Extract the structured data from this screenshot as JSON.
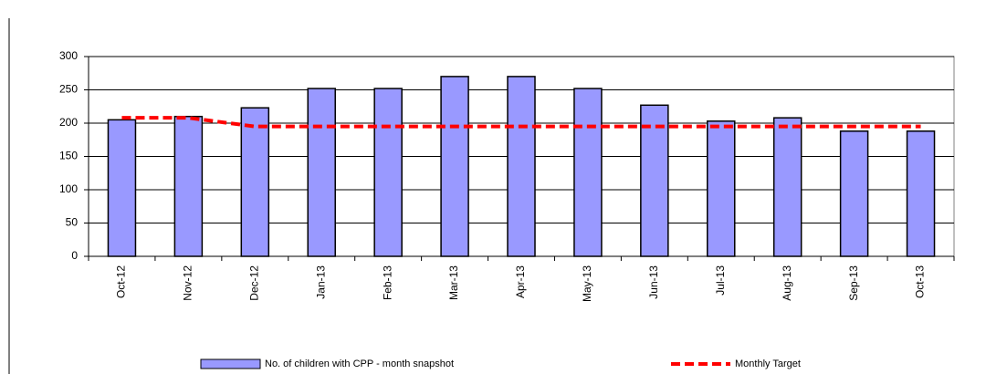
{
  "chart_data": {
    "type": "bar",
    "categories": [
      "Oct-12",
      "Nov-12",
      "Dec-12",
      "Jan-13",
      "Feb-13",
      "Mar-13",
      "Apr-13",
      "May-13",
      "Jun-13",
      "Jul-13",
      "Aug-13",
      "Sep-13",
      "Oct-13"
    ],
    "series": [
      {
        "name": "No. of children with CPP - month snapshot",
        "type": "bar",
        "color": "#9999ff",
        "values": [
          205,
          210,
          223,
          252,
          252,
          270,
          270,
          252,
          227,
          203,
          208,
          188,
          188
        ]
      },
      {
        "name": "Monthly Target",
        "type": "line",
        "color": "#ff0000",
        "values": [
          208,
          208,
          195,
          195,
          195,
          195,
          195,
          195,
          195,
          195,
          195,
          195,
          195
        ]
      }
    ],
    "ylim": [
      0,
      300
    ],
    "yticks": [
      0,
      50,
      100,
      150,
      200,
      250,
      300
    ],
    "grid": true,
    "legend": "bottom"
  }
}
